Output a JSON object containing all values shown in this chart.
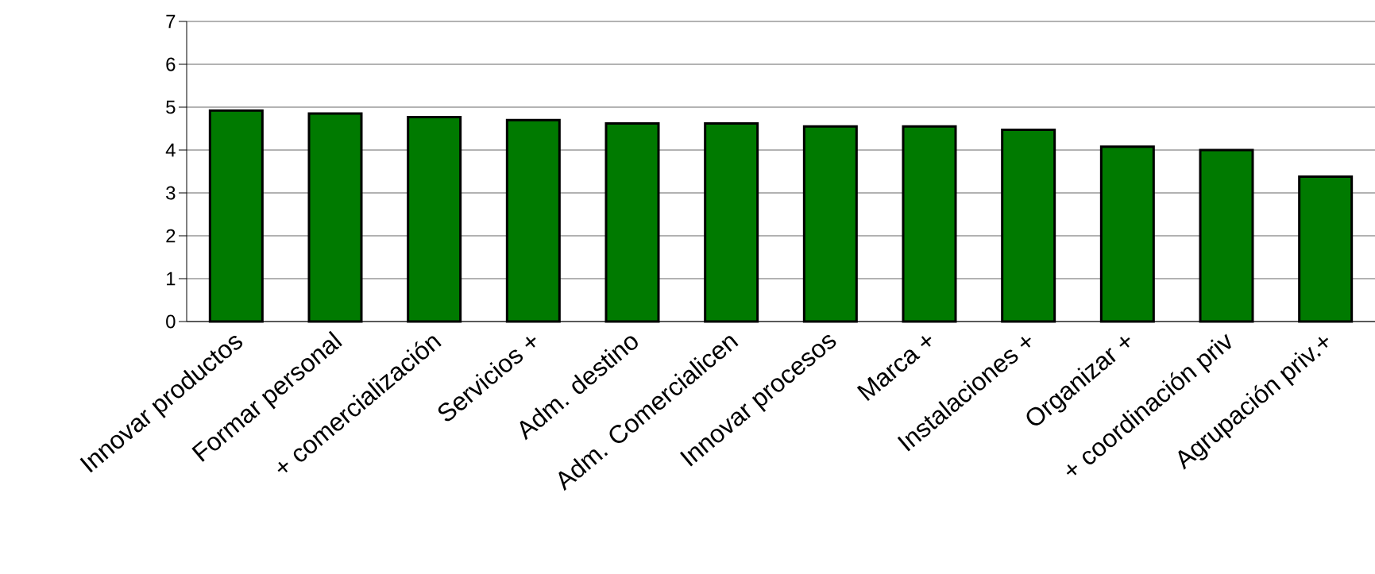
{
  "chart_data": {
    "type": "bar",
    "categories": [
      "Innovar productos",
      "Formar personal",
      "+ comercialización",
      "Servicios +",
      "Adm. destino",
      "Adm. Comercialicen",
      "Innovar procesos",
      "Marca +",
      "Instalaciones +",
      "Organizar +",
      "+ coordinación priv",
      "Agrupación priv.+"
    ],
    "values": [
      4.92,
      4.85,
      4.77,
      4.7,
      4.62,
      4.62,
      4.55,
      4.55,
      4.47,
      4.08,
      4.0,
      3.38
    ],
    "color": "#007a00",
    "ylim": [
      0,
      7
    ],
    "yticks": [
      0,
      1,
      2,
      3,
      4,
      5,
      6,
      7
    ],
    "grid": "y"
  }
}
